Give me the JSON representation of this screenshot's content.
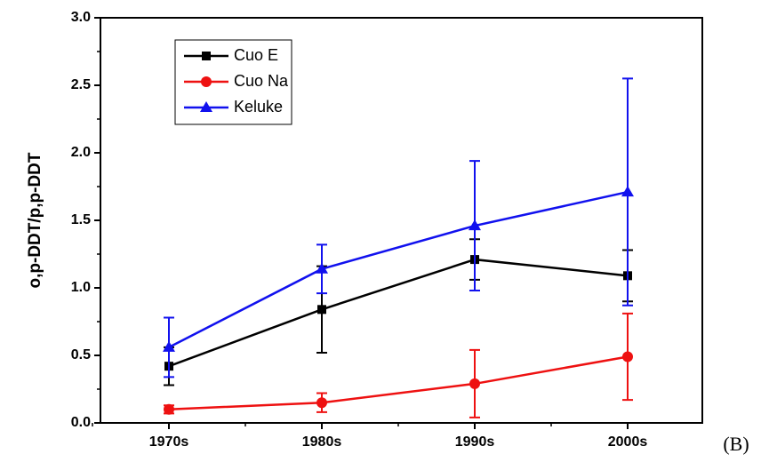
{
  "chart_data": {
    "type": "line",
    "y_label": "o,p-DDT/p,p-DDT",
    "panel_label": "(B)",
    "categories": [
      "1970s",
      "1980s",
      "1990s",
      "2000s"
    ],
    "series": [
      {
        "name": "Cuo E",
        "color": "#000000",
        "marker": "square",
        "values": [
          0.42,
          0.84,
          1.21,
          1.09
        ],
        "errors": [
          0.14,
          0.32,
          0.15,
          0.19
        ]
      },
      {
        "name": "Cuo Na",
        "color": "#ee1111",
        "marker": "circle",
        "values": [
          0.1,
          0.15,
          0.29,
          0.49
        ],
        "errors": [
          0.03,
          0.07,
          0.25,
          0.32
        ]
      },
      {
        "name": "Keluke",
        "color": "#1111ee",
        "marker": "triangle",
        "values": [
          0.56,
          1.14,
          1.46,
          1.71
        ],
        "errors": [
          0.22,
          0.18,
          0.48,
          0.84
        ]
      }
    ],
    "ylim": [
      0,
      3
    ],
    "yticks": [
      {
        "value": 0,
        "label": "0.0"
      },
      0.5,
      {
        "value": 1,
        "label": "1.0"
      },
      1.5,
      {
        "value": 2,
        "label": "2.0"
      },
      2.5,
      {
        "value": 3,
        "label": "3.0"
      }
    ],
    "minor_yticks": [
      0.25,
      0.75,
      1.25,
      1.75,
      2.25,
      2.75
    ],
    "legend": "upper left"
  }
}
